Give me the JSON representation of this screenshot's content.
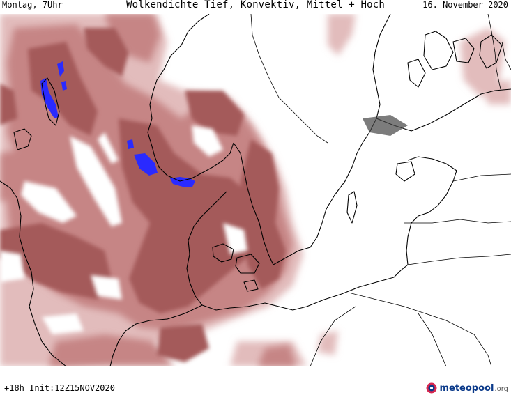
{
  "header": {
    "left": "Montag, 7Uhr",
    "title": "Wolkendichte  Tief, Konvektiv, Mittel + Hoch",
    "right": "16. November 2020"
  },
  "footer": {
    "left": "+18h Init:12Z15NOV2020"
  },
  "brand": {
    "name": "meteopool",
    "tld": ".org",
    "logo_icon": "meteopool-logo-icon"
  },
  "colors": {
    "cloud_light": "#e2bcbc",
    "cloud_mid": "#c68585",
    "cloud_dark": "#a45a5a",
    "cloud_darkest": "#8c4444",
    "convective": "#2a2aff",
    "coastline": "#000000"
  }
}
